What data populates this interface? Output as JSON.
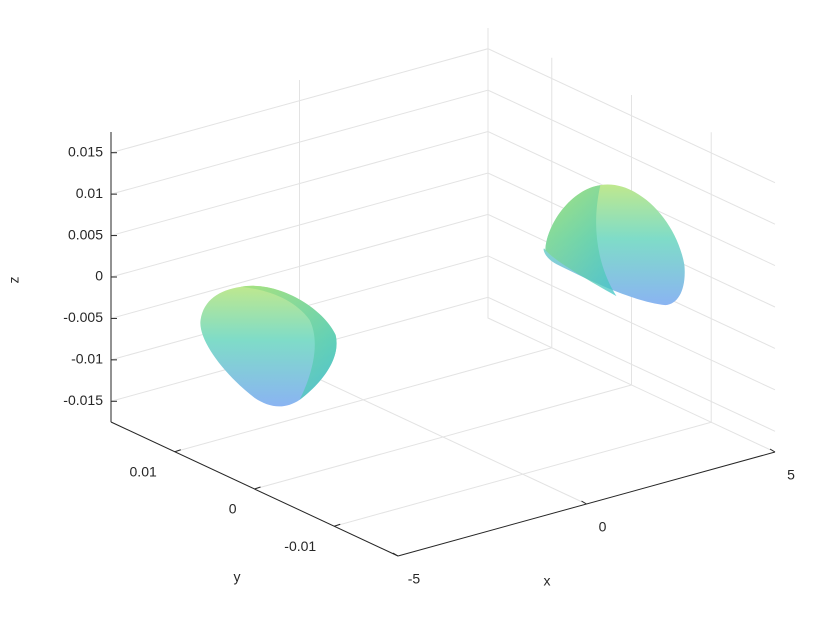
{
  "chart_data": {
    "type": "surface3d",
    "xlabel": "x",
    "ylabel": "y",
    "zlabel": "z",
    "xlim": [
      -5,
      5
    ],
    "xticks": [
      -5,
      0,
      5
    ],
    "ylim": [
      -0.018,
      0.018
    ],
    "yticks": [
      -0.01,
      0,
      0.01
    ],
    "zlim": [
      -0.0175,
      0.0175
    ],
    "zticks": [
      -0.015,
      -0.01,
      -0.005,
      0,
      0.005,
      0.01,
      0.015
    ],
    "grid": true,
    "series": [
      {
        "x": [
          -4.6,
          4.6
        ],
        "y": [
          0,
          0
        ],
        "z": [
          0,
          0
        ]
      }
    ]
  }
}
